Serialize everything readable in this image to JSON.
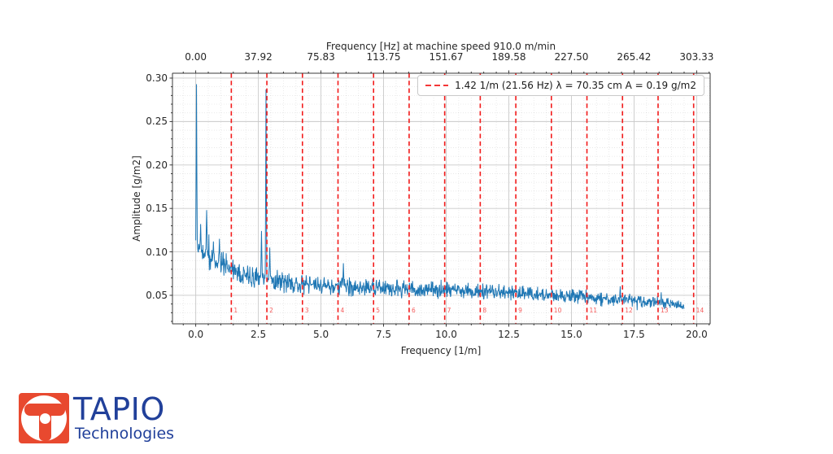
{
  "page": {
    "background": "#ffffff"
  },
  "logo": {
    "brand": "TAPIO",
    "subtitle": "Technologies",
    "brand_color": "#21409a",
    "icon_color": "#e8492f"
  },
  "chart_data": {
    "type": "line",
    "title": "",
    "top_axis": {
      "title": "Frequency [Hz] at machine speed 910.0 m/min",
      "tick_labels": [
        "0.00",
        "37.92",
        "75.83",
        "113.75",
        "151.67",
        "189.58",
        "227.50",
        "265.42",
        "303.33"
      ],
      "tick_values_1m": [
        0,
        2.5,
        5,
        7.5,
        10,
        12.5,
        15,
        17.5,
        20
      ]
    },
    "x_axis": {
      "label": "Frequency [1/m]",
      "tick_labels": [
        "0.0",
        "2.5",
        "5.0",
        "7.5",
        "10.0",
        "12.5",
        "15.0",
        "17.5",
        "20.0"
      ],
      "tick_values": [
        0,
        2.5,
        5,
        7.5,
        10,
        12.5,
        15,
        17.5,
        20
      ],
      "minor_step": 0.5,
      "lim": [
        -0.93,
        20.54
      ]
    },
    "y_axis": {
      "label": "Amplitude [g/m2]",
      "tick_labels": [
        "0.05",
        "0.10",
        "0.15",
        "0.20",
        "0.25",
        "0.30"
      ],
      "tick_values": [
        0.05,
        0.1,
        0.15,
        0.2,
        0.25,
        0.3
      ],
      "minor_step": 0.01,
      "lim": [
        0.0172,
        0.3056
      ]
    },
    "grid": {
      "major": true,
      "minor": true,
      "major_color": "#c9c9c9",
      "minor_color": "rgba(0,0,0,0.10)"
    },
    "legend": {
      "label": "1.42 1/m (21.56 Hz) λ = 70.35 cm A = 0.19 g/m2",
      "line_style": "dashed",
      "line_color": "#f21b1b",
      "position": "upper right"
    },
    "harmonics": {
      "base_frequency_1m": 1.42,
      "count": 14,
      "labels": [
        "1",
        "2",
        "3",
        "4",
        "5",
        "6",
        "7",
        "8",
        "9",
        "10",
        "11",
        "12",
        "13",
        "14"
      ],
      "line_color": "#f21b1b"
    },
    "series": [
      {
        "name": "amplitude-spectrum",
        "color": "#1f77b4",
        "x_start": 0,
        "x_end": 19.5,
        "x_step": 0.015,
        "noise_seed": 11,
        "envelope": [
          [
            0.1,
            0.105,
            0.016
          ],
          [
            0.3,
            0.096,
            0.015
          ],
          [
            0.6,
            0.09,
            0.014
          ],
          [
            1.0,
            0.086,
            0.014
          ],
          [
            1.5,
            0.08,
            0.013
          ],
          [
            2.0,
            0.074,
            0.012
          ],
          [
            2.5,
            0.071,
            0.012
          ],
          [
            3.0,
            0.067,
            0.011
          ],
          [
            4.0,
            0.063,
            0.011
          ],
          [
            5.0,
            0.061,
            0.01
          ],
          [
            6.0,
            0.06,
            0.01
          ],
          [
            7.0,
            0.058,
            0.01
          ],
          [
            8.0,
            0.057,
            0.01
          ],
          [
            9.0,
            0.057,
            0.009
          ],
          [
            10.0,
            0.056,
            0.009
          ],
          [
            11.0,
            0.055,
            0.009
          ],
          [
            12.0,
            0.054,
            0.009
          ],
          [
            13.0,
            0.052,
            0.009
          ],
          [
            14.0,
            0.051,
            0.008
          ],
          [
            15.0,
            0.049,
            0.008
          ],
          [
            16.0,
            0.047,
            0.008
          ],
          [
            17.0,
            0.045,
            0.007
          ],
          [
            18.0,
            0.043,
            0.007
          ],
          [
            18.8,
            0.041,
            0.006
          ],
          [
            19.3,
            0.038,
            0.006
          ],
          [
            19.5,
            0.036,
            0.005
          ]
        ],
        "peaks": [
          [
            0.03,
            0.293,
            0.012
          ],
          [
            0.195,
            0.132,
            0.012
          ],
          [
            0.435,
            0.148,
            0.015
          ],
          [
            0.705,
            0.112,
            0.012
          ],
          [
            0.945,
            0.115,
            0.012
          ],
          [
            2.625,
            0.124,
            0.013
          ],
          [
            2.805,
            0.287,
            0.012
          ],
          [
            2.955,
            0.105,
            0.012
          ],
          [
            5.895,
            0.087,
            0.012
          ]
        ]
      }
    ]
  }
}
